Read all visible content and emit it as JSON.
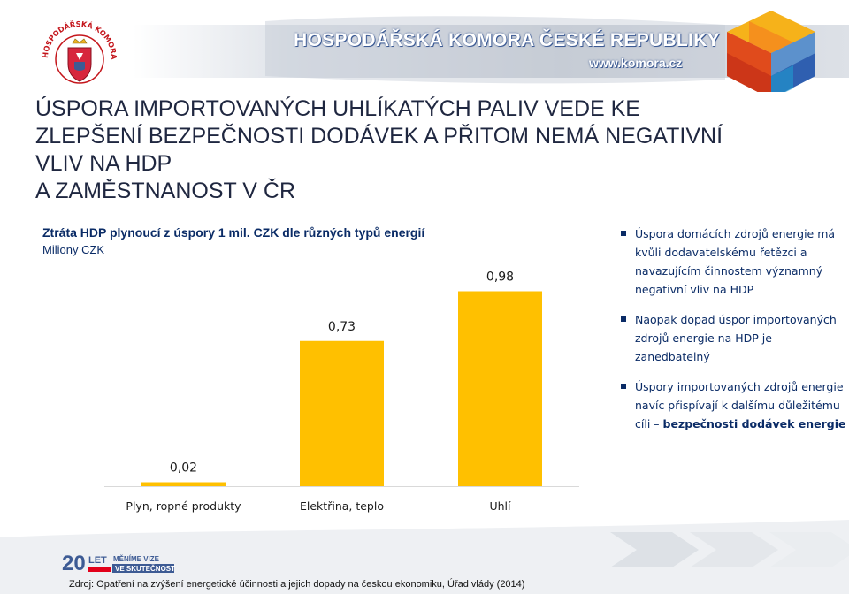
{
  "header": {
    "org_name": "HOSPODÁŘSKÁ KOMORA ČESKÉ REPUBLIKY",
    "website": "www.komora.cz",
    "seal_text": "HOSPODÁŘSKÁ KOMORA ČESKÉ REPUBLIKY"
  },
  "title": {
    "line1": "ÚSPORA IMPORTOVANÝCH UHLÍKATÝCH PALIV VEDE KE",
    "line2": "ZLEPŠENÍ BEZPEČNOSTI DODÁVEK A PŘITOM NEMÁ NEGATIVNÍ",
    "line3": "VLIV NA HDP",
    "line4": "A ZAMĚSTNANOST V ČR"
  },
  "chart_data": {
    "type": "bar",
    "title": "Ztráta HDP plynoucí z úspory 1 mil. CZK dle různých typů energií",
    "subtitle": "Miliony CZK",
    "categories": [
      "Plyn, ropné produkty",
      "Elektřina, teplo",
      "Uhlí"
    ],
    "values": [
      0.02,
      0.73,
      0.98
    ],
    "value_labels": [
      "0,02",
      "0,73",
      "0,98"
    ],
    "ylim": [
      0,
      1.2
    ],
    "grid": false,
    "bar_color": "#ffc000"
  },
  "bullets": [
    {
      "text": "Úspora domácích zdrojů energie má kvůli dodavatelskému řetězci a navazujícím činnostem významný negativní vliv na HDP",
      "bold": ""
    },
    {
      "text": "Naopak dopad úspor importovaných zdrojů energie na HDP je zanedbatelný",
      "bold": ""
    },
    {
      "text": "Úspory importovaných zdrojů energie navíc přispívají k dalšímu důležitému cíli – ",
      "bold": "bezpečnosti dodávek energie"
    }
  ],
  "footer": {
    "logo_number": "20",
    "logo_let": "LET",
    "logo_line1": "MĚNÍME VIZE",
    "logo_line2": "VE SKUTEČNOST",
    "source": "Zdroj: Opatření na zvýšení energetické účinnosti a jejich dopady na českou ekonomiku, Úřad vlády (2014)"
  },
  "colors": {
    "accent": "#0a2b66",
    "brand_blue": "#3d5b94",
    "bar": "#ffc000",
    "logo_red": "#e2001a"
  }
}
